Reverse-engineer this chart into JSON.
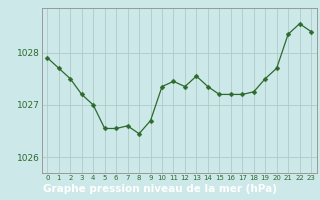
{
  "x": [
    0,
    1,
    2,
    3,
    4,
    5,
    6,
    7,
    8,
    9,
    10,
    11,
    12,
    13,
    14,
    15,
    16,
    17,
    18,
    19,
    20,
    21,
    22,
    23
  ],
  "y": [
    1027.9,
    1027.7,
    1027.5,
    1027.2,
    1027.0,
    1026.55,
    1026.55,
    1026.6,
    1026.45,
    1026.7,
    1027.35,
    1027.45,
    1027.35,
    1027.55,
    1027.35,
    1027.2,
    1027.2,
    1027.2,
    1027.25,
    1027.5,
    1027.7,
    1028.35,
    1028.55,
    1028.4
  ],
  "line_color": "#2d6a2d",
  "marker": "D",
  "marker_size": 2.5,
  "background_color": "#cce8e8",
  "grid_color": "#b0c8c8",
  "xlabel": "Graphe pression niveau de la mer (hPa)",
  "xlabel_fontsize": 7.5,
  "ylabel_ticks": [
    1026,
    1027,
    1028
  ],
  "xlim": [
    -0.5,
    23.5
  ],
  "ylim": [
    1025.7,
    1028.85
  ],
  "tick_label_color": "#2d6a2d",
  "axis_color": "#999999",
  "bottom_bar_color": "#336633",
  "xtick_fontsize": 5.0,
  "ytick_fontsize": 6.5
}
